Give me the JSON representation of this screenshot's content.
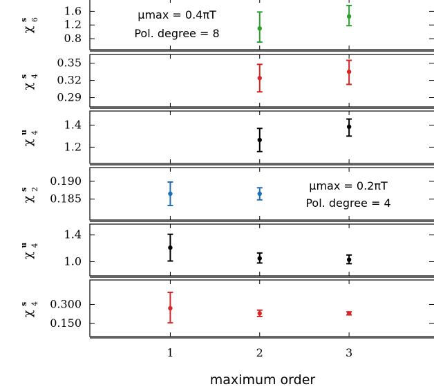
{
  "chart_data": {
    "type": "scatter",
    "xlabel": "maximum order",
    "x_ticks": [
      "1",
      "2",
      "3"
    ],
    "xlim": [
      0.1,
      3.95
    ],
    "panels": [
      {
        "ylabel": {
          "base": "χ",
          "sub": "6",
          "sup": "s"
        },
        "color": "#2ca02c",
        "yticks": [
          "0.8",
          "1.2",
          "1.6"
        ],
        "ylim": [
          0.6,
          1.85
        ],
        "points": [
          {
            "x": 2,
            "y": 1.1,
            "lo": 0.7,
            "hi": 1.58
          },
          {
            "x": 3,
            "y": 1.45,
            "lo": 1.18,
            "hi": 1.77
          }
        ],
        "annotation": {
          "line1": "μmax = 0.4πT",
          "line2": "Pol. degree = 8"
        }
      },
      {
        "ylabel": {
          "base": "χ",
          "sub": "4",
          "sup": "s"
        },
        "color": "#d62728",
        "yticks": [
          "0.29",
          "0.32",
          "0.35"
        ],
        "ylim": [
          0.281,
          0.358
        ],
        "points": [
          {
            "x": 2,
            "y": 0.324,
            "lo": 0.3,
            "hi": 0.348
          },
          {
            "x": 3,
            "y": 0.335,
            "lo": 0.313,
            "hi": 0.355
          }
        ]
      },
      {
        "ylabel": {
          "base": "χ",
          "sub": "4",
          "sup": "u"
        },
        "color": "#000000",
        "yticks": [
          "1.2",
          "1.4"
        ],
        "ylim": [
          1.09,
          1.49
        ],
        "points": [
          {
            "x": 2,
            "y": 1.265,
            "lo": 1.16,
            "hi": 1.37
          },
          {
            "x": 3,
            "y": 1.385,
            "lo": 1.3,
            "hi": 1.455
          }
        ]
      },
      {
        "ylabel": {
          "base": "χ",
          "sub": "2",
          "sup": "s"
        },
        "color": "#1f6fb5",
        "yticks": [
          "0.185",
          "0.190"
        ],
        "ylim": [
          0.1803,
          0.1927
        ],
        "points": [
          {
            "x": 1,
            "y": 0.1865,
            "lo": 0.1832,
            "hi": 0.1898
          },
          {
            "x": 2,
            "y": 0.1865,
            "lo": 0.1848,
            "hi": 0.1882
          }
        ],
        "annotation": {
          "line1": "μmax = 0.2πT",
          "line2": "Pol. degree = 4"
        }
      },
      {
        "ylabel": {
          "base": "χ",
          "sub": "4",
          "sup": "u"
        },
        "color": "#000000",
        "yticks": [
          "1.0",
          "1.4"
        ],
        "ylim": [
          0.85,
          1.5
        ],
        "points": [
          {
            "x": 1,
            "y": 1.21,
            "lo": 1.01,
            "hi": 1.41
          },
          {
            "x": 2,
            "y": 1.05,
            "lo": 0.98,
            "hi": 1.13
          },
          {
            "x": 3,
            "y": 1.03,
            "lo": 0.97,
            "hi": 1.1
          }
        ]
      },
      {
        "ylabel": {
          "base": "χ",
          "sub": "4",
          "sup": "s"
        },
        "color": "#d62728",
        "yticks": [
          "0.150",
          "0.300"
        ],
        "ylim": [
          0.08,
          0.46
        ],
        "points": [
          {
            "x": 1,
            "y": 0.27,
            "lo": 0.155,
            "hi": 0.395
          },
          {
            "x": 2,
            "y": 0.23,
            "lo": 0.205,
            "hi": 0.255
          },
          {
            "x": 3,
            "y": 0.23,
            "lo": 0.218,
            "hi": 0.242
          }
        ]
      }
    ]
  }
}
